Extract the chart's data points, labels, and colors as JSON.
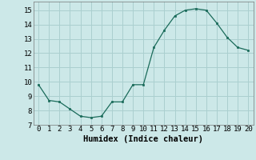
{
  "x": [
    0,
    1,
    2,
    3,
    4,
    5,
    6,
    7,
    8,
    9,
    10,
    11,
    12,
    13,
    14,
    15,
    16,
    17,
    18,
    19,
    20
  ],
  "y": [
    9.8,
    8.7,
    8.6,
    8.1,
    7.6,
    7.5,
    7.6,
    8.6,
    8.6,
    9.8,
    9.8,
    12.4,
    13.6,
    14.6,
    15.0,
    15.1,
    15.0,
    14.1,
    13.1,
    12.4,
    12.2
  ],
  "line_color": "#1a6b5a",
  "marker_color": "#1a6b5a",
  "bg_color": "#cce8e8",
  "grid_color": "#aacfcf",
  "xlabel": "Humidex (Indice chaleur)",
  "xlim": [
    -0.5,
    20.5
  ],
  "ylim": [
    7,
    15.6
  ],
  "yticks": [
    7,
    8,
    9,
    10,
    11,
    12,
    13,
    14,
    15
  ],
  "xticks": [
    0,
    1,
    2,
    3,
    4,
    5,
    6,
    7,
    8,
    9,
    10,
    11,
    12,
    13,
    14,
    15,
    16,
    17,
    18,
    19,
    20
  ],
  "xlabel_fontsize": 7.5,
  "tick_fontsize": 6.5
}
